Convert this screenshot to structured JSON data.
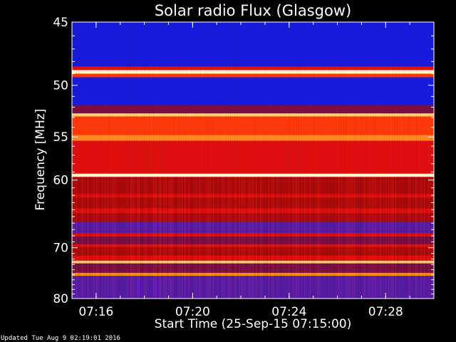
{
  "chart_data": {
    "type": "heatmap",
    "title": "Solar radio Flux (Glasgow)",
    "xlabel": "Start Time (25-Sep-15 07:15:00)",
    "ylabel": "Frequency [MHz]",
    "x_ticks": [
      "07:16",
      "07:20",
      "07:24",
      "07:28"
    ],
    "x_range": [
      "07:15:00",
      "07:30:00"
    ],
    "y_ticks": [
      45,
      50,
      55,
      60,
      70,
      80
    ],
    "y_range": [
      45,
      80
    ],
    "y_scale": "reciprocal",
    "colormap": [
      "#1c0a9a",
      "#1a1adc",
      "#5a1ca8",
      "#7a0f48",
      "#b00a0a",
      "#e01010",
      "#ff3a0a",
      "#ff8a20",
      "#ffd070",
      "#fff4d0"
    ],
    "bands": [
      {
        "from": 44.6,
        "to": 45.6,
        "level": 1
      },
      {
        "from": 45.6,
        "to": 48.4,
        "level": 1
      },
      {
        "from": 48.4,
        "to": 48.7,
        "level": 5
      },
      {
        "from": 48.7,
        "to": 49.0,
        "level": 9
      },
      {
        "from": 49.0,
        "to": 49.3,
        "level": 6
      },
      {
        "from": 49.3,
        "to": 51.8,
        "level": 1
      },
      {
        "from": 51.8,
        "to": 52.6,
        "level": 3
      },
      {
        "from": 52.6,
        "to": 52.9,
        "level": 8
      },
      {
        "from": 52.9,
        "to": 54.8,
        "level": 6
      },
      {
        "from": 54.8,
        "to": 55.4,
        "level": 7
      },
      {
        "from": 55.4,
        "to": 59.2,
        "level": 5
      },
      {
        "from": 59.2,
        "to": 59.6,
        "level": 9
      },
      {
        "from": 59.6,
        "to": 61.8,
        "level": 4
      },
      {
        "from": 61.8,
        "to": 62.3,
        "level": 5
      },
      {
        "from": 62.3,
        "to": 63.8,
        "level": 4
      },
      {
        "from": 63.8,
        "to": 64.5,
        "level": 5
      },
      {
        "from": 64.5,
        "to": 65.8,
        "level": 4
      },
      {
        "from": 65.8,
        "to": 67.6,
        "level": 2
      },
      {
        "from": 67.6,
        "to": 68.1,
        "level": 5
      },
      {
        "from": 68.1,
        "to": 69.4,
        "level": 3
      },
      {
        "from": 69.4,
        "to": 69.9,
        "level": 5
      },
      {
        "from": 69.9,
        "to": 71.4,
        "level": 4
      },
      {
        "from": 71.4,
        "to": 72.3,
        "level": 5
      },
      {
        "from": 72.3,
        "to": 72.8,
        "level": 8
      },
      {
        "from": 72.8,
        "to": 74.6,
        "level": 3
      },
      {
        "from": 74.6,
        "to": 75.2,
        "level": 7
      },
      {
        "from": 75.2,
        "to": 76.6,
        "level": 2
      },
      {
        "from": 76.6,
        "to": 79.0,
        "level": 2
      },
      {
        "from": 79.0,
        "to": 80.4,
        "level": 2
      }
    ]
  },
  "footer": {
    "updated": "Updated Tue Aug  9 02:19:01 2016"
  }
}
